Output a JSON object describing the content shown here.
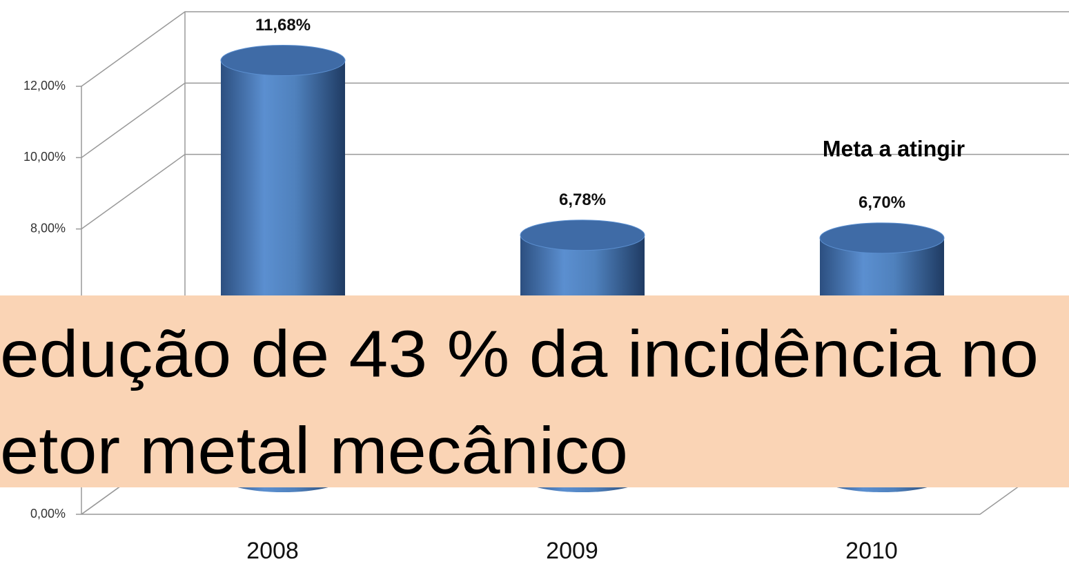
{
  "chart_data": {
    "type": "bar",
    "categories": [
      "2008",
      "2009",
      "2010"
    ],
    "values": [
      11.68,
      6.78,
      6.7
    ],
    "value_labels": [
      "11,68%",
      "6,78%",
      "6,70%"
    ],
    "color": "#4f81bd",
    "ylim": [
      0,
      12
    ],
    "yticks": [
      {
        "value": 0,
        "label": "0,00%"
      },
      {
        "value": 8,
        "label": "8,00%"
      },
      {
        "value": 10,
        "label": "10,00%"
      },
      {
        "value": 12,
        "label": "12,00%"
      }
    ],
    "grid": true,
    "annotations": [
      "Meta a atingir"
    ]
  },
  "overlay": {
    "lines": [
      "edução de 43 % da incidência no",
      "etor metal mecânico"
    ]
  }
}
